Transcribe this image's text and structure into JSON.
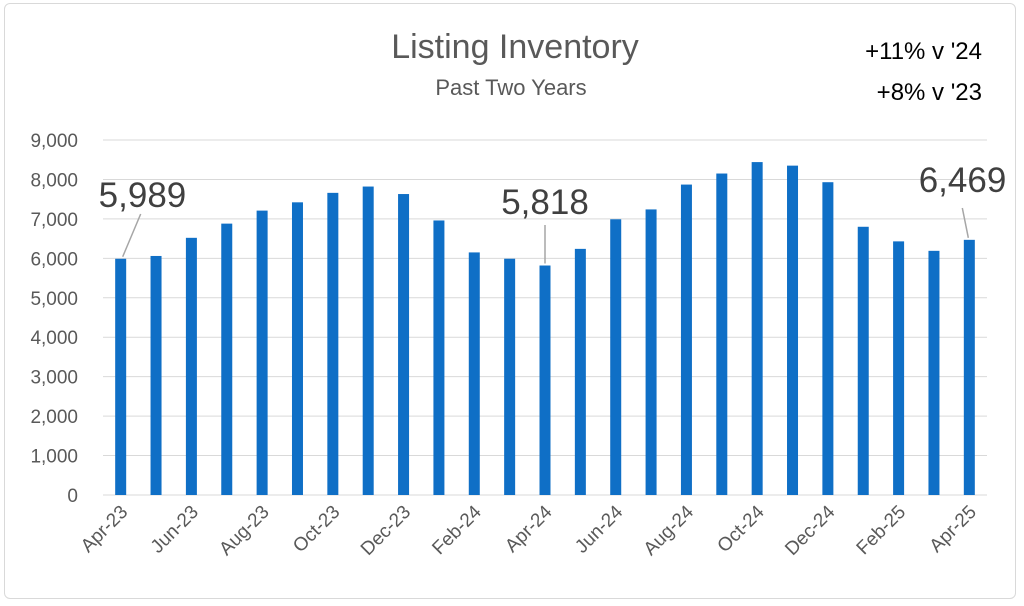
{
  "chart_data": {
    "type": "bar",
    "title": "Listing Inventory",
    "subtitle": "Past Two Years",
    "annotations": [
      "+11% v '24",
      "+8% v '23"
    ],
    "categories": [
      "Apr-23",
      "May-23",
      "Jun-23",
      "Jul-23",
      "Aug-23",
      "Sep-23",
      "Oct-23",
      "Nov-23",
      "Dec-23",
      "Jan-24",
      "Feb-24",
      "Mar-24",
      "Apr-24",
      "May-24",
      "Jun-24",
      "Jul-24",
      "Aug-24",
      "Sep-24",
      "Oct-24",
      "Nov-24",
      "Dec-24",
      "Jan-25",
      "Feb-25",
      "Mar-25",
      "Apr-25"
    ],
    "x_tick_labels": [
      "Apr-23",
      "",
      "Jun-23",
      "",
      "Aug-23",
      "",
      "Oct-23",
      "",
      "Dec-23",
      "",
      "Feb-24",
      "",
      "Apr-24",
      "",
      "Jun-24",
      "",
      "Aug-24",
      "",
      "Oct-24",
      "",
      "Dec-24",
      "",
      "Feb-25",
      "",
      "Apr-25"
    ],
    "values": [
      5989,
      6060,
      6520,
      6880,
      7210,
      7420,
      7660,
      7820,
      7630,
      6960,
      6150,
      5990,
      5818,
      6240,
      6990,
      7240,
      7870,
      8150,
      8440,
      8350,
      7930,
      6800,
      6430,
      6190,
      6469
    ],
    "data_labels": [
      {
        "index": 0,
        "text": "5,989"
      },
      {
        "index": 12,
        "text": "5,818"
      },
      {
        "index": 24,
        "text": "6,469"
      }
    ],
    "y_tick_labels": [
      "0",
      "1,000",
      "2,000",
      "3,000",
      "4,000",
      "5,000",
      "6,000",
      "7,000",
      "8,000",
      "9,000"
    ],
    "ylim": [
      0,
      9000
    ],
    "xlabel": "",
    "ylabel": "",
    "grid": true,
    "legend": "none",
    "bar_color": "#0f6fc6"
  }
}
